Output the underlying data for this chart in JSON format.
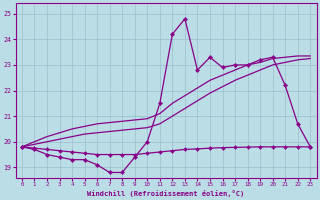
{
  "xlabel": "Windchill (Refroidissement éolien,°C)",
  "background_color": "#bbdde6",
  "grid_color": "#9bbfcc",
  "line_color": "#880088",
  "x_hours": [
    0,
    1,
    2,
    3,
    4,
    5,
    6,
    7,
    8,
    9,
    10,
    11,
    12,
    13,
    14,
    15,
    16,
    17,
    18,
    19,
    20,
    21,
    22,
    23
  ],
  "windchill": [
    19.8,
    19.7,
    19.5,
    19.4,
    19.3,
    19.3,
    19.1,
    18.8,
    18.8,
    19.4,
    20.0,
    21.5,
    24.2,
    24.8,
    22.8,
    23.3,
    22.9,
    23.0,
    23.0,
    23.2,
    23.3,
    22.2,
    20.7,
    19.8
  ],
  "line1": [
    19.8,
    20.0,
    20.2,
    20.35,
    20.5,
    20.6,
    20.7,
    20.75,
    20.8,
    20.85,
    20.9,
    21.1,
    21.5,
    21.8,
    22.1,
    22.4,
    22.6,
    22.8,
    23.0,
    23.1,
    23.25,
    23.3,
    23.35,
    23.35
  ],
  "line2": [
    19.8,
    19.9,
    20.0,
    20.1,
    20.2,
    20.3,
    20.35,
    20.4,
    20.45,
    20.5,
    20.55,
    20.7,
    21.0,
    21.3,
    21.6,
    21.9,
    22.15,
    22.4,
    22.6,
    22.8,
    23.0,
    23.1,
    23.2,
    23.25
  ],
  "flat_line": [
    19.8,
    19.75,
    19.7,
    19.65,
    19.6,
    19.55,
    19.5,
    19.5,
    19.5,
    19.5,
    19.55,
    19.6,
    19.65,
    19.7,
    19.72,
    19.75,
    19.77,
    19.78,
    19.79,
    19.8,
    19.8,
    19.8,
    19.8,
    19.8
  ],
  "ylim": [
    18.6,
    25.4
  ],
  "xlim": [
    -0.5,
    23.5
  ],
  "yticks": [
    19,
    20,
    21,
    22,
    23,
    24,
    25
  ],
  "xticks": [
    0,
    1,
    2,
    3,
    4,
    5,
    6,
    7,
    8,
    9,
    10,
    11,
    12,
    13,
    14,
    15,
    16,
    17,
    18,
    19,
    20,
    21,
    22,
    23
  ]
}
